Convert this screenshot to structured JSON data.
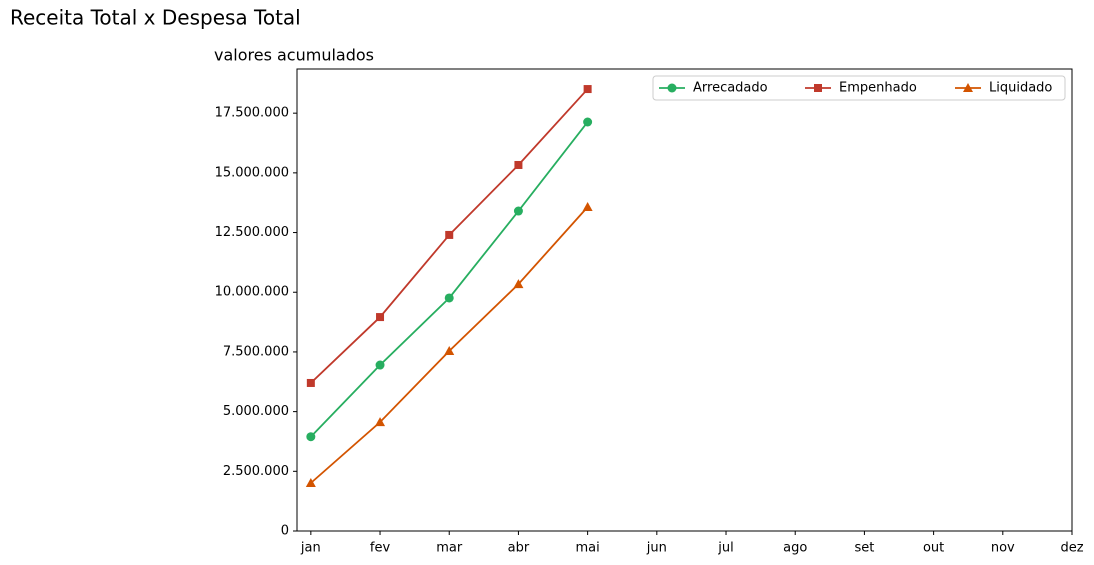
{
  "chart_data": {
    "type": "line",
    "title": "Receita Total x Despesa Total",
    "subtitle": "valores acumulados",
    "categories": [
      "jan",
      "fev",
      "mar",
      "abr",
      "mai",
      "jun",
      "jul",
      "ago",
      "set",
      "out",
      "nov",
      "dez"
    ],
    "series": [
      {
        "name": "Arrecadado",
        "color": "#27ae60",
        "marker": "circle",
        "values": [
          3950000,
          6950000,
          9760000,
          13400000,
          17130000,
          null,
          null,
          null,
          null,
          null,
          null,
          null
        ]
      },
      {
        "name": "Empenhado",
        "color": "#c0392b",
        "marker": "square",
        "values": [
          6200000,
          8960000,
          12400000,
          15330000,
          18510000,
          null,
          null,
          null,
          null,
          null,
          null,
          null
        ]
      },
      {
        "name": "Liquidado",
        "color": "#d35400",
        "marker": "triangle",
        "values": [
          2010000,
          4560000,
          7540000,
          10340000,
          13570000,
          null,
          null,
          null,
          null,
          null,
          null,
          null
        ]
      }
    ],
    "ylim": [
      0,
      19350000
    ],
    "yticks": [
      0,
      {
        "value": 2500000,
        "label": "2.500.000"
      },
      {
        "value": 5000000,
        "label": "5.000.000"
      },
      {
        "value": 7500000,
        "label": "7.500.000"
      },
      {
        "value": 10000000,
        "label": "10.000.000"
      },
      {
        "value": 12500000,
        "label": "12.500.000"
      },
      {
        "value": 15000000,
        "label": "15.000.000"
      },
      {
        "value": 17500000,
        "label": "17.500.000"
      }
    ],
    "grid": false,
    "legend": "upper right"
  }
}
